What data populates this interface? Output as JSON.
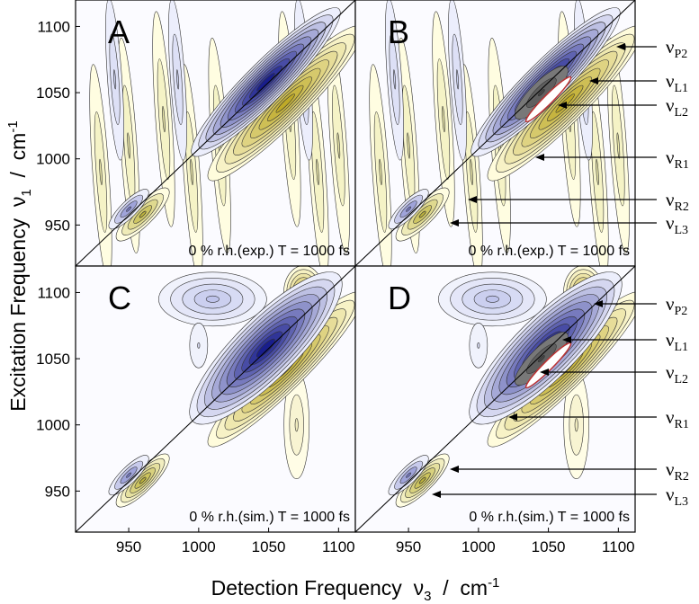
{
  "xlabel": {
    "text": "Detection Frequency  ν",
    "sub": "3",
    "unit": "  /  cm",
    "sup": "-1"
  },
  "ylabel": {
    "text": "Excitation Frequency  ν",
    "sub": "1",
    "unit": "  /  cm",
    "sup": "-1"
  },
  "chart_data": [
    {
      "type": "contour",
      "panel": "A",
      "annotation": "0 % r.h.(exp.) T = 1000 fs",
      "xlim": [
        912,
        1112
      ],
      "ylim": [
        919,
        1120
      ],
      "yticks": [
        950,
        1000,
        1050,
        1100
      ]
    },
    {
      "type": "contour",
      "panel": "B",
      "annotation": "0 % r.h.(exp.) T = 1000 fs",
      "xlim": [
        912,
        1112
      ],
      "ylim": [
        919,
        1120
      ],
      "peak_labels": [
        {
          "symbol": "ν",
          "sub": "P2"
        },
        {
          "symbol": "ν",
          "sub": "L1"
        },
        {
          "symbol": "ν",
          "sub": "L2"
        },
        {
          "symbol": "ν",
          "sub": "R1"
        },
        {
          "symbol": "ν",
          "sub": "R2"
        },
        {
          "symbol": "ν",
          "sub": "L3"
        }
      ]
    },
    {
      "type": "contour",
      "panel": "C",
      "annotation": "0 % r.h.(sim.) T = 1000 fs",
      "xlim": [
        912,
        1112
      ],
      "ylim": [
        919,
        1120
      ],
      "xticks": [
        950,
        1000,
        1050,
        1100
      ],
      "yticks": [
        950,
        1000,
        1050,
        1100
      ]
    },
    {
      "type": "contour",
      "panel": "D",
      "annotation": "0 % r.h.(sim.) T = 1000 fs",
      "xlim": [
        912,
        1112
      ],
      "ylim": [
        919,
        1120
      ],
      "xticks": [
        950,
        1000,
        1050,
        1100
      ],
      "peak_labels": [
        {
          "symbol": "ν",
          "sub": "P2"
        },
        {
          "symbol": "ν",
          "sub": "L1"
        },
        {
          "symbol": "ν",
          "sub": "L2"
        },
        {
          "symbol": "ν",
          "sub": "R1"
        },
        {
          "symbol": "ν",
          "sub": "R2"
        },
        {
          "symbol": "ν",
          "sub": "L3"
        }
      ]
    }
  ]
}
